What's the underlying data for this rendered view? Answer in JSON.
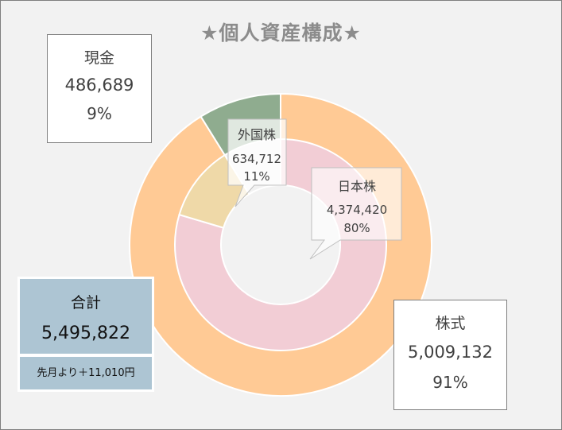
{
  "title": "★個人資産構成★",
  "chart_data": {
    "type": "doughnut",
    "outer_ring": {
      "categories": [
        "株式",
        "現金"
      ],
      "values": [
        5009132,
        486689
      ],
      "percents": [
        "91%",
        "9%"
      ],
      "colors": [
        "#ffca95",
        "#8fac8f"
      ]
    },
    "inner_ring": {
      "categories": [
        "日本株",
        "外国株",
        "現金"
      ],
      "values": [
        4374420,
        634712,
        486689
      ],
      "value_labels": [
        "4,374,420",
        "634,712",
        ""
      ],
      "percents": [
        "80%",
        "11%",
        ""
      ],
      "colors": [
        "#f2cdd5",
        "#efd9a8",
        "#f2f2f2"
      ]
    }
  },
  "callouts": {
    "cash": {
      "label": "現金",
      "value": "486,689",
      "percent": "9%"
    },
    "stock": {
      "label": "株式",
      "value": "5,009,132",
      "percent": "91%"
    },
    "japan": {
      "label": "日本株",
      "value": "4,374,420",
      "percent": "80%"
    },
    "foreign": {
      "label": "外国株",
      "value": "634,712",
      "percent": "11%"
    }
  },
  "total": {
    "label": "合計",
    "value": "5,495,822",
    "change": "先月より＋11,010円"
  }
}
